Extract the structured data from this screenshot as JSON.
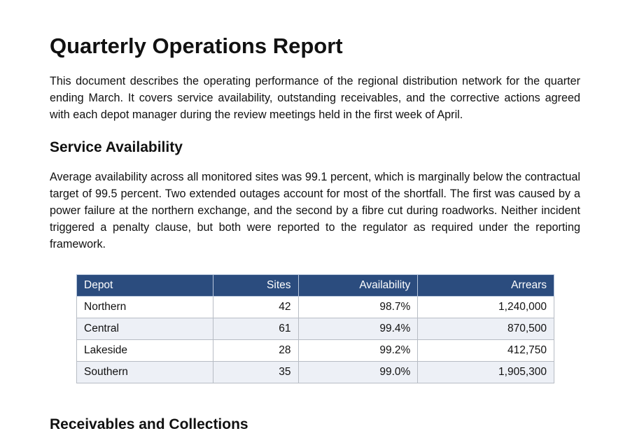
{
  "document": {
    "title": "Quarterly Operations Report",
    "intro": "This document describes the operating performance of the regional distribution network for the quarter ending March. It covers service availability, outstanding receivables, and the corrective actions agreed with each depot manager during the review meetings held in the first week of April.",
    "sections": [
      {
        "heading": "Service Availability",
        "body": "Average availability across all monitored sites was 99.1 percent, which is marginally below the contractual target of 99.5 percent. Two extended outages account for most of the shortfall. The first was caused by a power failure at the northern exchange, and the second by a fibre cut during roadworks. Neither incident triggered a penalty clause, but both were reported to the regulator as required under the reporting framework."
      },
      {
        "heading": "Receivables and Collections"
      }
    ],
    "table": {
      "headers": [
        "Depot",
        "Sites",
        "Availability",
        "Arrears"
      ],
      "rows": [
        [
          "Northern",
          "42",
          "98.7%",
          "1,240,000"
        ],
        [
          "Central",
          "61",
          "99.4%",
          "870,500"
        ],
        [
          "Lakeside",
          "28",
          "99.2%",
          "412,750"
        ],
        [
          "Southern",
          "35",
          "99.0%",
          "1,905,300"
        ]
      ]
    }
  },
  "colors": {
    "header_bg": "#2b4c7e",
    "stripe_bg": "#edf0f6"
  }
}
